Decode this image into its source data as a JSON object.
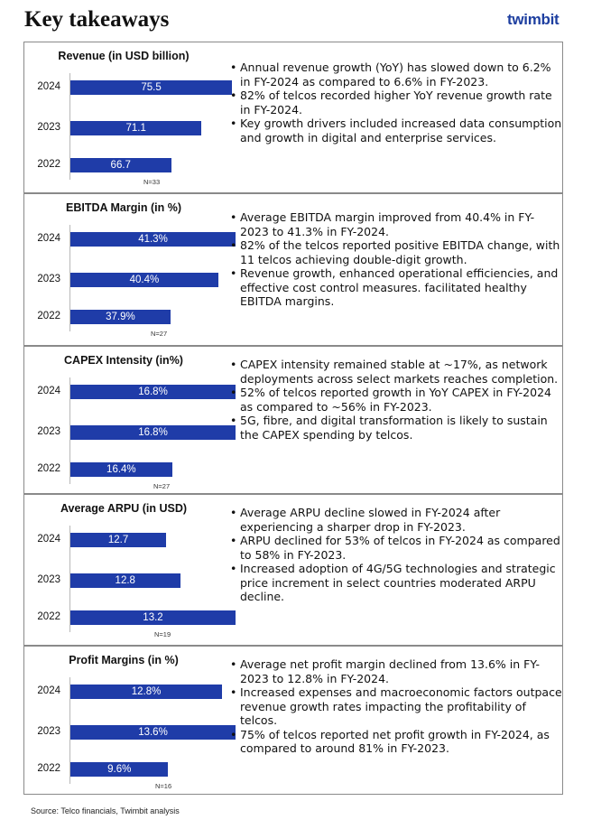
{
  "page_title": "Key takeaways",
  "logo_text": "twimbit",
  "source": "Source: Telco financials, Twimbit analysis",
  "panels": [
    {
      "title": "Revenue (in USD billion)",
      "n_label": "N=33",
      "bullets": [
        "Annual revenue growth (YoY) has slowed down to 6.2% in FY-2024 as compared to 6.6% in FY-2023.",
        "82% of telcos recorded higher YoY revenue growth rate in FY-2024.",
        "Key growth drivers included increased data consumption and growth in digital and enterprise services."
      ]
    },
    {
      "title": "EBITDA Margin (in %)",
      "n_label": "N=27",
      "bullets": [
        "Average EBITDA margin improved from 40.4% in FY-2023 to 41.3% in FY-2024.",
        "82% of the telcos reported positive EBITDA change, with 11 telcos achieving double-digit growth.",
        "Revenue growth, enhanced operational efficiencies, and effective cost control measures. facilitated healthy EBITDA margins."
      ]
    },
    {
      "title": "CAPEX Intensity (in%)",
      "n_label": "N=27",
      "bullets": [
        "CAPEX intensity remained stable at ~17%, as network deployments across select markets reaches completion.",
        "52% of telcos reported growth in YoY CAPEX in FY-2024 as compared to ~56% in FY-2023.",
        "5G, fibre, and digital transformation is likely to sustain the CAPEX spending by telcos."
      ]
    },
    {
      "title": "Average ARPU (in USD)",
      "n_label": "N=19",
      "bullets": [
        "Average ARPU decline slowed in FY-2024 after experiencing a sharper drop in FY-2023.",
        "ARPU declined for 53% of telcos in FY-2024 as compared to 58% in FY-2023.",
        "Increased adoption of 4G/5G technologies and strategic price increment in select countries moderated ARPU decline."
      ]
    },
    {
      "title": "Profit Margins (in %)",
      "n_label": "N=16",
      "bullets": [
        "Average net profit margin declined from 13.6% in FY-2023 to 12.8% in FY-2024.",
        "Increased expenses and macroeconomic factors outpace revenue growth rates impacting the profitability of telcos.",
        "75% of telcos reported net profit growth in FY-2024, as compared to around 81% in FY-2023."
      ]
    }
  ],
  "chart_data": [
    {
      "type": "bar",
      "orientation": "horizontal",
      "title": "Revenue (in USD billion)",
      "categories": [
        "2024",
        "2023",
        "2022"
      ],
      "values": [
        75.5,
        71.1,
        66.7
      ],
      "labels": [
        "75.5",
        "71.1",
        "66.7"
      ],
      "xlim": [
        60,
        76
      ],
      "color": "#1f3ca8"
    },
    {
      "type": "bar",
      "orientation": "horizontal",
      "title": "EBITDA Margin (in %)",
      "categories": [
        "2024",
        "2023",
        "2022"
      ],
      "values": [
        41.3,
        40.4,
        37.9
      ],
      "labels": [
        "41.3%",
        "40.4%",
        "37.9%"
      ],
      "xlim": [
        35.5,
        41.3
      ],
      "color": "#1f3ca8"
    },
    {
      "type": "bar",
      "orientation": "horizontal",
      "title": "CAPEX Intensity (in%)",
      "categories": [
        "2024",
        "2023",
        "2022"
      ],
      "values": [
        16.8,
        16.8,
        16.4
      ],
      "labels": [
        "16.8%",
        "16.8%",
        "16.4%"
      ],
      "xlim": [
        16.1,
        16.8
      ],
      "color": "#1f3ca8"
    },
    {
      "type": "bar",
      "orientation": "horizontal",
      "title": "Average ARPU (in USD)",
      "categories": [
        "2024",
        "2023",
        "2022"
      ],
      "values": [
        12.7,
        12.8,
        13.2
      ],
      "labels": [
        "12.7",
        "12.8",
        "13.2"
      ],
      "xlim": [
        12.4,
        13.2
      ],
      "color": "#1f3ca8"
    },
    {
      "type": "bar",
      "orientation": "horizontal",
      "title": "Profit Margins (in %)",
      "categories": [
        "2024",
        "2023",
        "2022"
      ],
      "values": [
        12.8,
        13.6,
        9.6
      ],
      "labels": [
        "12.8%",
        "13.6%",
        "9.6%"
      ],
      "xlim": [
        7.0,
        13.6
      ],
      "color": "#1f3ca8"
    }
  ]
}
